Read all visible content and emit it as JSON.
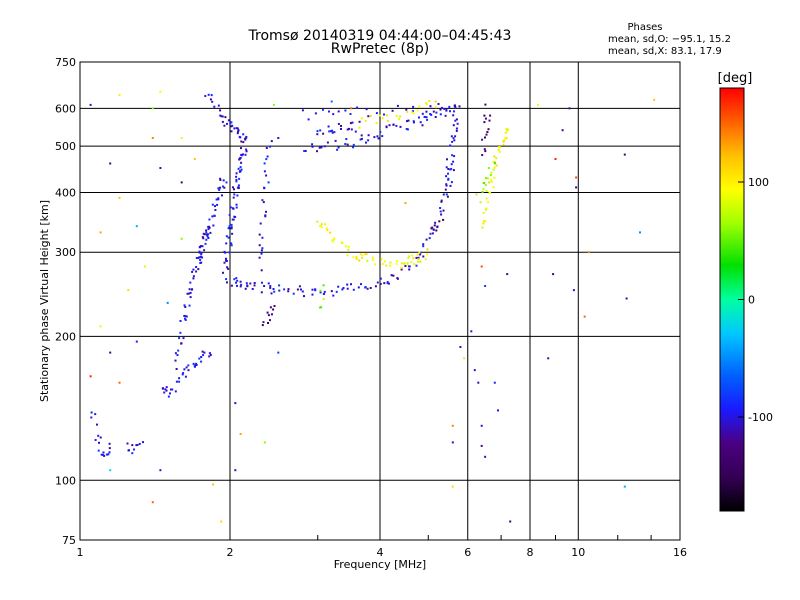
{
  "chart_data": {
    "type": "scatter",
    "title": "Tromsø 20140319 04:44:00–04:45:43",
    "subtitle": "RwPretec (8p)",
    "xlabel": "Frequency [MHz]",
    "ylabel": "Stationary phase Virtual Height [km]",
    "x_scale": "log",
    "y_scale": "log",
    "xlim": [
      1,
      16
    ],
    "ylim": [
      75,
      750
    ],
    "x_ticks": [
      1,
      2,
      4,
      6,
      8,
      10,
      16
    ],
    "x_tick_labels": [
      "1",
      "2",
      "4",
      "6",
      "8",
      "10",
      "16"
    ],
    "y_ticks": [
      75,
      100,
      200,
      300,
      400,
      500,
      600,
      750
    ],
    "y_tick_labels": [
      "75",
      "100",
      "200",
      "300",
      "400",
      "500",
      "600",
      "750"
    ],
    "grid": true,
    "stats": {
      "heading": "Phases",
      "line_o": "mean, sd,O: −95.1, 15.2",
      "line_x": "mean, sd,X: 83.1, 17.9"
    },
    "colorbar": {
      "label": "[deg]",
      "range": [
        -180,
        180
      ],
      "ticks": [
        100,
        0,
        -100
      ],
      "tick_labels": [
        "100",
        "0",
        "-100"
      ],
      "colormap": "rainbow"
    },
    "traces": [
      {
        "name": "",
        "phase": -100,
        "segments": [
          {
            "x": [
              1.05,
              1.08,
              1.1,
              1.12,
              1.15
            ],
            "y": [
              140,
              125,
              115,
              113,
              118
            ],
            "n": 18
          },
          {
            "x": [
              1.25,
              1.28,
              1.32
            ],
            "y": [
              120,
              115,
              122
            ],
            "n": 10
          },
          {
            "x": [
              1.45,
              1.52,
              1.6,
              1.68,
              1.75,
              1.82
            ],
            "y": [
              155,
              150,
              165,
              175,
              180,
              185
            ],
            "n": 36
          },
          {
            "x": [
              1.55,
              1.6,
              1.65,
              1.7,
              1.75,
              1.82
            ],
            "y": [
              175,
              210,
              240,
              270,
              300,
              340
            ],
            "n": 50
          },
          {
            "x": [
              1.72,
              1.8,
              1.88,
              1.95
            ],
            "y": [
              290,
              330,
              380,
              430
            ],
            "n": 40
          },
          {
            "x": [
              1.8,
              1.9,
              1.98,
              2.05,
              2.1
            ],
            "y": [
              640,
              590,
              560,
              540,
              525
            ],
            "n": 30
          },
          {
            "x": [
              1.95,
              2.0,
              2.05,
              2.1,
              2.15
            ],
            "y": [
              270,
              330,
              400,
              460,
              520
            ],
            "n": 70
          },
          {
            "x": [
              2.3,
              2.35,
              2.4
            ],
            "y": [
              280,
              380,
              520
            ],
            "n": 25
          },
          {
            "x": [
              2.0,
              2.2,
              2.5,
              3.0,
              3.6,
              4.2,
              4.8,
              5.3,
              5.6
            ],
            "y": [
              260,
              255,
              250,
              248,
              252,
              262,
              290,
              360,
              450
            ],
            "n": 110
          },
          {
            "x": [
              5.45,
              5.55,
              5.65,
              5.75
            ],
            "y": [
              420,
              480,
              550,
              610
            ],
            "n": 30
          },
          {
            "x": [
              2.8,
              3.2,
              3.6,
              4.0,
              4.4,
              4.8,
              5.2,
              5.6
            ],
            "y": [
              500,
              500,
              510,
              530,
              550,
              565,
              580,
              600
            ],
            "n": 60
          },
          {
            "x": [
              2.8,
              3.5,
              4.5,
              5.5
            ],
            "y": [
              580,
              590,
              595,
              600
            ],
            "n": 25
          },
          {
            "x": [
              3.0,
              3.3,
              3.6
            ],
            "y": [
              540,
              545,
              550
            ],
            "n": 20
          }
        ]
      },
      {
        "name": "",
        "phase": -130,
        "segments": [
          {
            "x": [
              2.35,
              2.38,
              2.4,
              2.42
            ],
            "y": [
              215,
              220,
              225,
              230
            ],
            "n": 10
          },
          {
            "x": [
              6.45,
              6.5,
              6.55,
              6.6
            ],
            "y": [
              480,
              520,
              560,
              600
            ],
            "n": 14
          },
          {
            "x": [
              5.1,
              5.2,
              5.3
            ],
            "y": [
              330,
              340,
              350
            ],
            "n": 8
          }
        ]
      },
      {
        "name": "",
        "phase": 95,
        "segments": [
          {
            "x": [
              3.0,
              3.2,
              3.5,
              3.8,
              4.2,
              4.8
            ],
            "y": [
              350,
              320,
              300,
              290,
              285,
              290
            ],
            "n": 45
          },
          {
            "x": [
              3.6,
              4.0,
              4.4,
              4.8,
              5.2
            ],
            "y": [
              560,
              570,
              580,
              600,
              620
            ],
            "n": 22
          },
          {
            "x": [
              6.4,
              6.6,
              6.8,
              7.0,
              7.2
            ],
            "y": [
              340,
              400,
              450,
              500,
              540
            ],
            "n": 40
          },
          {
            "x": [
              4.4,
              4.7,
              5.0
            ],
            "y": [
              285,
              290,
              300
            ],
            "n": 14
          }
        ]
      },
      {
        "name": "",
        "phase": 60,
        "segments": [
          {
            "x": [
              3.0,
              3.05,
              3.1
            ],
            "y": [
              230,
              240,
              250
            ],
            "n": 5
          },
          {
            "x": [
              6.3,
              6.5,
              6.7
            ],
            "y": [
              380,
              420,
              460
            ],
            "n": 12
          }
        ]
      }
    ],
    "scattered_points": [
      {
        "x": 1.05,
        "y": 610,
        "phase": -110
      },
      {
        "x": 1.2,
        "y": 640,
        "phase": 100
      },
      {
        "x": 1.4,
        "y": 600,
        "phase": 60
      },
      {
        "x": 1.45,
        "y": 650,
        "phase": 90
      },
      {
        "x": 1.15,
        "y": 460,
        "phase": -120
      },
      {
        "x": 1.4,
        "y": 520,
        "phase": 140
      },
      {
        "x": 1.45,
        "y": 450,
        "phase": -110
      },
      {
        "x": 1.2,
        "y": 390,
        "phase": 120
      },
      {
        "x": 1.1,
        "y": 330,
        "phase": 130
      },
      {
        "x": 1.35,
        "y": 280,
        "phase": 80
      },
      {
        "x": 1.25,
        "y": 250,
        "phase": 110
      },
      {
        "x": 1.1,
        "y": 210,
        "phase": 100
      },
      {
        "x": 1.3,
        "y": 195,
        "phase": -90
      },
      {
        "x": 1.15,
        "y": 185,
        "phase": -120
      },
      {
        "x": 1.2,
        "y": 160,
        "phase": 150
      },
      {
        "x": 1.05,
        "y": 165,
        "phase": 170
      },
      {
        "x": 1.15,
        "y": 105,
        "phase": -20
      },
      {
        "x": 1.4,
        "y": 90,
        "phase": 150
      },
      {
        "x": 1.45,
        "y": 105,
        "phase": -100
      },
      {
        "x": 1.85,
        "y": 98,
        "phase": 120
      },
      {
        "x": 1.92,
        "y": 82,
        "phase": 110
      },
      {
        "x": 2.05,
        "y": 105,
        "phase": -110
      },
      {
        "x": 2.05,
        "y": 145,
        "phase": -100
      },
      {
        "x": 2.5,
        "y": 185,
        "phase": -80
      },
      {
        "x": 2.1,
        "y": 125,
        "phase": 130
      },
      {
        "x": 1.6,
        "y": 420,
        "phase": -130
      },
      {
        "x": 1.7,
        "y": 470,
        "phase": 120
      },
      {
        "x": 1.6,
        "y": 320,
        "phase": 60
      },
      {
        "x": 1.5,
        "y": 235,
        "phase": -50
      },
      {
        "x": 1.3,
        "y": 340,
        "phase": -40
      },
      {
        "x": 2.5,
        "y": 520,
        "phase": -110
      },
      {
        "x": 2.45,
        "y": 610,
        "phase": 60
      },
      {
        "x": 3.2,
        "y": 620,
        "phase": -60
      },
      {
        "x": 4.5,
        "y": 380,
        "phase": 130
      },
      {
        "x": 5.6,
        "y": 120,
        "phase": -100
      },
      {
        "x": 5.6,
        "y": 130,
        "phase": 140
      },
      {
        "x": 5.8,
        "y": 190,
        "phase": -110
      },
      {
        "x": 5.9,
        "y": 180,
        "phase": 80
      },
      {
        "x": 6.1,
        "y": 205,
        "phase": -100
      },
      {
        "x": 6.4,
        "y": 280,
        "phase": 160
      },
      {
        "x": 6.5,
        "y": 255,
        "phase": -80
      },
      {
        "x": 6.2,
        "y": 170,
        "phase": -100
      },
      {
        "x": 6.3,
        "y": 160,
        "phase": -110
      },
      {
        "x": 6.4,
        "y": 130,
        "phase": -100
      },
      {
        "x": 6.4,
        "y": 118,
        "phase": -120
      },
      {
        "x": 6.5,
        "y": 112,
        "phase": -110
      },
      {
        "x": 6.8,
        "y": 160,
        "phase": -90
      },
      {
        "x": 6.9,
        "y": 140,
        "phase": -100
      },
      {
        "x": 7.3,
        "y": 82,
        "phase": -130
      },
      {
        "x": 7.2,
        "y": 270,
        "phase": -120
      },
      {
        "x": 8.3,
        "y": 610,
        "phase": 100
      },
      {
        "x": 8.9,
        "y": 270,
        "phase": -130
      },
      {
        "x": 8.7,
        "y": 180,
        "phase": -110
      },
      {
        "x": 9.0,
        "y": 470,
        "phase": 170
      },
      {
        "x": 9.3,
        "y": 540,
        "phase": -120
      },
      {
        "x": 9.9,
        "y": 410,
        "phase": -130
      },
      {
        "x": 9.6,
        "y": 600,
        "phase": -110
      },
      {
        "x": 9.9,
        "y": 430,
        "phase": 160
      },
      {
        "x": 9.8,
        "y": 250,
        "phase": -100
      },
      {
        "x": 10.5,
        "y": 300,
        "phase": 140
      },
      {
        "x": 10.3,
        "y": 220,
        "phase": 150
      },
      {
        "x": 12.4,
        "y": 480,
        "phase": -130
      },
      {
        "x": 12.5,
        "y": 240,
        "phase": -120
      },
      {
        "x": 13.3,
        "y": 330,
        "phase": -50
      },
      {
        "x": 12.4,
        "y": 97,
        "phase": -40
      },
      {
        "x": 14.2,
        "y": 625,
        "phase": 120
      },
      {
        "x": 5.6,
        "y": 97,
        "phase": 110
      },
      {
        "x": 2.35,
        "y": 120,
        "phase": 60
      },
      {
        "x": 1.6,
        "y": 520,
        "phase": 100
      },
      {
        "x": 3.5,
        "y": 600,
        "phase": 150
      }
    ]
  }
}
